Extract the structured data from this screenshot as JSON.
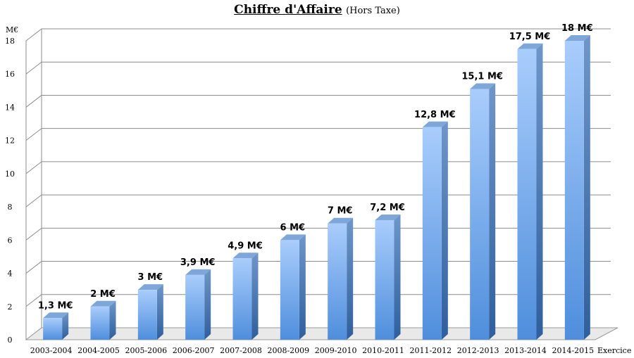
{
  "chart_data": {
    "type": "bar",
    "title": "Chiffre d'Affaire",
    "subtitle": "(Hors Taxe)",
    "ylabel": "M€",
    "xlabel": "Exercice",
    "ylim": [
      0,
      18
    ],
    "yticks": [
      0,
      2,
      4,
      6,
      8,
      10,
      12,
      14,
      16,
      18
    ],
    "grid": true,
    "categories": [
      "2003-2004",
      "2004-2005",
      "2005-2006",
      "2006-2007",
      "2007-2008",
      "2008-2009",
      "2009-2010",
      "2010-2011",
      "2011-2012",
      "2012-2013",
      "2013-2014",
      "2014-2015"
    ],
    "values": [
      1.3,
      2,
      3,
      3.9,
      4.9,
      6,
      7,
      7.2,
      12.8,
      15.1,
      17.5,
      18
    ],
    "data_labels": [
      "1,3 M€",
      "2 M€",
      "3 M€",
      "3,9 M€",
      "4,9 M€",
      "6 M€",
      "7 M€",
      "7,2 M€",
      "12,8 M€",
      "15,1 M€",
      "17,5 M€",
      "18 M€"
    ],
    "bar_color": "#6aa2e6"
  }
}
